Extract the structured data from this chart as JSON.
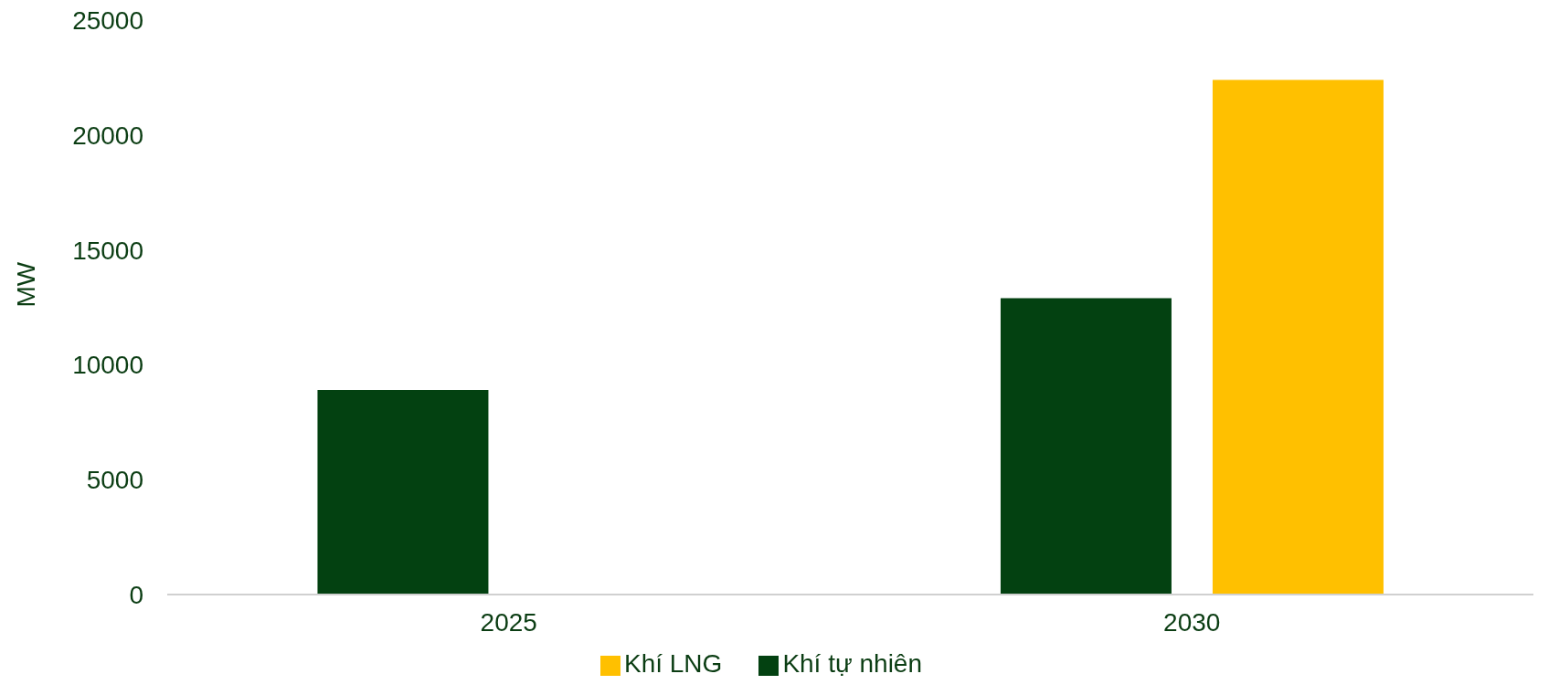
{
  "chart_data": {
    "type": "bar",
    "ylabel": "MW",
    "categories": [
      "2025",
      "2030"
    ],
    "series": [
      {
        "name": "Khí tự nhiên",
        "color": "#034111",
        "values": [
          8900,
          12900
        ]
      },
      {
        "name": "Khí LNG",
        "color": "#ffc000",
        "values": [
          null,
          22400
        ]
      }
    ],
    "ylim": [
      0,
      25000
    ],
    "yticks": [
      0,
      5000,
      10000,
      15000,
      20000,
      25000
    ],
    "grid": false,
    "legend": "bottom"
  }
}
